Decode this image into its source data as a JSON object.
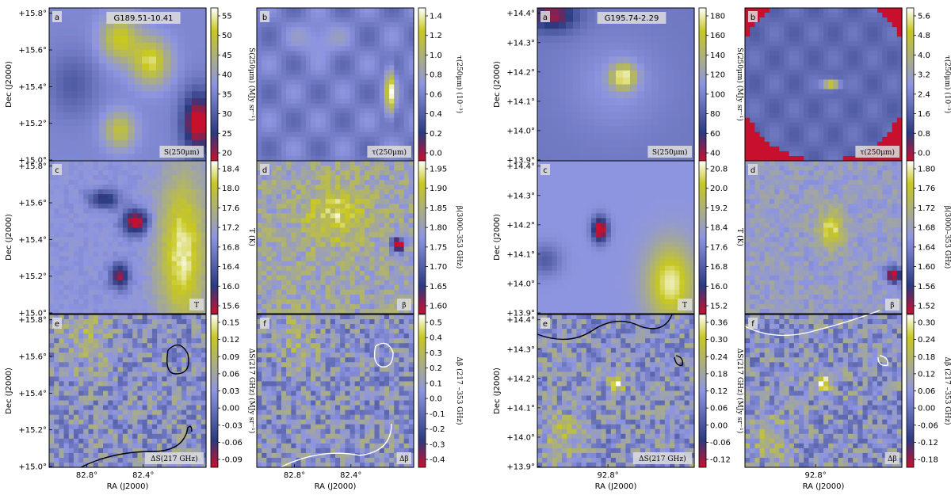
{
  "figures": [
    {
      "title": "G189.51-10.41",
      "dec_ticks": [
        "+15.8°",
        "+15.6°",
        "+15.4°",
        "+15.2°",
        "+15.0°"
      ],
      "ra_ticks": [
        "82.8°",
        "82.4°"
      ],
      "dec_label": "Dec (J2000)",
      "ra_labels": [
        "RA (J2000)",
        "RA (J2000)"
      ],
      "panels": [
        {
          "letter": "a",
          "label": "S(250μm)",
          "cmap": "smooth",
          "cbar_label": "S(250μm) (MJy sr⁻¹)",
          "ticks": [
            "55",
            "50",
            "45",
            "40",
            "35",
            "30",
            "25",
            "20"
          ],
          "contour": "none"
        },
        {
          "letter": "b",
          "label": "τ(250μm)",
          "cmap": "tau",
          "cbar_label": "τ(250μm) (10⁻³)",
          "ticks": [
            "1.4",
            "1.2",
            "1.0",
            "0.8",
            "0.6",
            "0.4",
            "0.2",
            "0.0"
          ],
          "contour": "none"
        },
        {
          "letter": "c",
          "label": "T",
          "cmap": "temp",
          "cbar_label": "T (K)",
          "ticks": [
            "18.4",
            "18.0",
            "17.6",
            "17.2",
            "16.8",
            "16.4",
            "16.0",
            "15.6"
          ],
          "contour": "none"
        },
        {
          "letter": "d",
          "label": "β",
          "cmap": "beta",
          "cbar_label": "β(3000–353 GHz)",
          "ticks": [
            "1.95",
            "1.90",
            "1.85",
            "1.80",
            "1.75",
            "1.70",
            "1.65",
            "1.60"
          ],
          "contour": "none"
        },
        {
          "letter": "e",
          "label": "ΔS(217 GHz)",
          "cmap": "residual",
          "cbar_label": "ΔS(217 GHz) (MJy sr⁻¹)",
          "ticks": [
            "0.15",
            "0.12",
            "0.09",
            "0.06",
            "0.03",
            "0.00",
            "-0.03",
            "-0.06",
            "-0.09"
          ],
          "contour": "black"
        },
        {
          "letter": "f",
          "label": "Δβ",
          "cmap": "residual",
          "cbar_label": "Δβ (217 –353 GHz)",
          "ticks": [
            "0.5",
            "0.4",
            "0.3",
            "0.2",
            "0.1",
            "0.0",
            "-0.1",
            "-0.2",
            "-0.3",
            "-0.4"
          ],
          "contour": "white"
        }
      ]
    },
    {
      "title": "G195.74-2.29",
      "dec_ticks": [
        "+14.4°",
        "+14.3°",
        "+14.2°",
        "+14.1°",
        "+14.0°",
        "+13.9°"
      ],
      "ra_ticks": [
        "92.8°"
      ],
      "dec_label": "Dec (J2000)",
      "ra_labels": [
        "RA (J2000)",
        "RA (J2000)"
      ],
      "panels": [
        {
          "letter": "a",
          "label": "S(250μm)",
          "cmap": "smooth",
          "cbar_label": "S(250μm) (MJy sr⁻¹)",
          "ticks": [
            "180",
            "160",
            "140",
            "120",
            "100",
            "80",
            "60",
            "40"
          ],
          "contour": "none"
        },
        {
          "letter": "b",
          "label": "τ(250μm)",
          "cmap": "tau",
          "cbar_label": "τ(250μm) (10⁻³)",
          "ticks": [
            "5.6",
            "4.8",
            "4.0",
            "3.2",
            "2.4",
            "1.6",
            "0.8",
            "0.0"
          ],
          "contour": "none"
        },
        {
          "letter": "c",
          "label": "T",
          "cmap": "temp",
          "cbar_label": "T (K)",
          "ticks": [
            "20.8",
            "20.0",
            "19.2",
            "18.4",
            "17.6",
            "16.8",
            "16.0",
            "15.2"
          ],
          "contour": "none"
        },
        {
          "letter": "d",
          "label": "β",
          "cmap": "beta",
          "cbar_label": "β(3000–353 GHz)",
          "ticks": [
            "1.80",
            "1.76",
            "1.72",
            "1.68",
            "1.64",
            "1.60",
            "1.56",
            "1.52"
          ],
          "contour": "none"
        },
        {
          "letter": "e",
          "label": "ΔS(217 GHz)",
          "cmap": "residual",
          "cbar_label": "ΔS(217 GHz) (MJy sr⁻¹)",
          "ticks": [
            "0.36",
            "0.30",
            "0.24",
            "0.18",
            "0.12",
            "0.06",
            "0.00",
            "-0.06",
            "-0.12"
          ],
          "contour": "black"
        },
        {
          "letter": "f",
          "label": "Δβ",
          "cmap": "residual",
          "cbar_label": "Δβ (217 –353 GHz)",
          "ticks": [
            "0.30",
            "0.24",
            "0.18",
            "0.12",
            "0.06",
            "0.00",
            "-0.06",
            "-0.12",
            "-0.18"
          ],
          "contour": "white"
        }
      ]
    }
  ],
  "colors": {
    "low": "#c8102e",
    "mid_dark": "#2b3a80",
    "mid": "#8e95e0",
    "high": "#c8c820",
    "peak": "#ffffff"
  },
  "chart_data": {
    "type": "heatmap",
    "figures": [
      {
        "title": "G189.51-10.41",
        "quantities": [
          "S(250μm)",
          "τ(250μm)",
          "T",
          "β",
          "ΔS(217 GHz)",
          "Δβ"
        ],
        "ranges": {
          "S(250μm)": [
            20,
            55
          ],
          "τ(250μm)": [
            0.0,
            1.4
          ],
          "T": [
            15.6,
            18.4
          ],
          "β": [
            1.6,
            1.95
          ],
          "ΔS(217 GHz)": [
            -0.09,
            0.15
          ],
          "Δβ": [
            -0.4,
            0.5
          ]
        },
        "dec_range": [
          15.0,
          15.8
        ],
        "ra_ticks": [
          82.8,
          82.4
        ]
      },
      {
        "title": "G195.74-2.29",
        "quantities": [
          "S(250μm)",
          "τ(250μm)",
          "T",
          "β",
          "ΔS(217 GHz)",
          "Δβ"
        ],
        "ranges": {
          "S(250μm)": [
            40,
            180
          ],
          "τ(250μm)": [
            0.0,
            5.6
          ],
          "T": [
            15.2,
            20.8
          ],
          "β": [
            1.52,
            1.8
          ],
          "ΔS(217 GHz)": [
            -0.12,
            0.36
          ],
          "Δβ": [
            -0.18,
            0.3
          ]
        },
        "dec_range": [
          13.9,
          14.4
        ],
        "ra_ticks": [
          92.8
        ]
      }
    ]
  }
}
